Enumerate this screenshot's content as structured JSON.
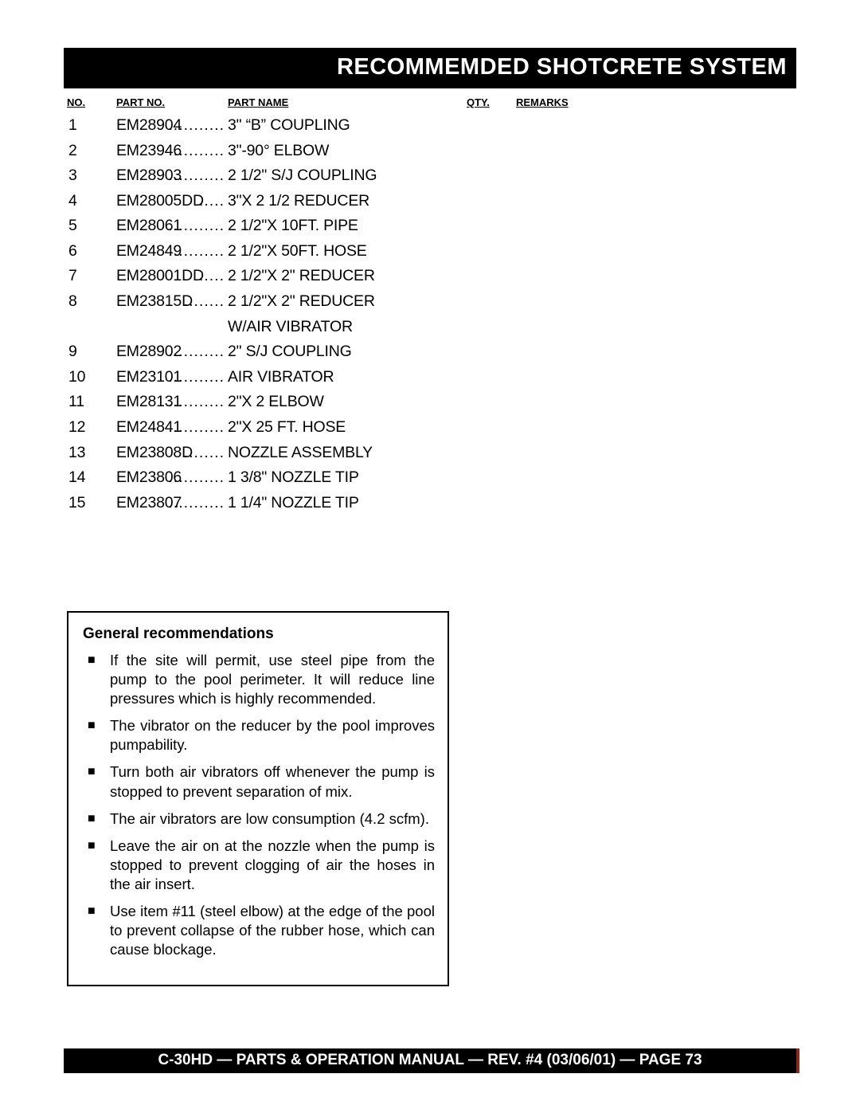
{
  "title": "RECOMMEMDED SHOTCRETE SYSTEM",
  "headers": {
    "no": "NO.",
    "partNo": "PART NO.",
    "partName": "PART NAME",
    "qty": "QTY.",
    "remarks": "REMARKS"
  },
  "parts": [
    {
      "no": "1",
      "pn": "EM28904",
      "dots": "...........",
      "name": "3\" “B” COUPLING"
    },
    {
      "no": "2",
      "pn": "EM23946",
      "dots": "...........",
      "name": "3\"-90° ELBOW"
    },
    {
      "no": "3",
      "pn": "EM28903",
      "dots": "...........",
      "name": "2 1/2\" S/J COUPLING"
    },
    {
      "no": "4",
      "pn": "EM28005DD",
      "dots": ".....",
      "name": "3\"X 2 1/2 REDUCER"
    },
    {
      "no": "5",
      "pn": "EM28061",
      "dots": "...........",
      "name": "2 1/2\"X 10FT. PIPE"
    },
    {
      "no": "6",
      "pn": "EM24849",
      "dots": "...........",
      "name": "2 1/2\"X 50FT. HOSE"
    },
    {
      "no": "7",
      "pn": "EM28001DD",
      "dots": ".....",
      "name": "2 1/2\"X 2\" REDUCER"
    },
    {
      "no": "8",
      "pn": "EM23815D",
      "dots": "........",
      "name": "2 1/2\"X 2\" REDUCER"
    },
    {
      "no": "",
      "pn": "",
      "dots": "",
      "name": "W/AIR VIBRATOR"
    },
    {
      "no": "9",
      "pn": "EM28902",
      "dots": "...........",
      "name": "2\" S/J COUPLING",
      "right": true
    },
    {
      "no": "10",
      "pn": "EM23101",
      "dots": "...........",
      "name": "AIR VIBRATOR"
    },
    {
      "no": "11",
      "pn": "EM28131",
      "dots": "...........",
      "name": "2\"X 2 ELBOW"
    },
    {
      "no": "12",
      "pn": "EM24841",
      "dots": "...........",
      "name": "2\"X 25 FT. HOSE"
    },
    {
      "no": "13",
      "pn": "EM23808D",
      "dots": "........",
      "name": "NOZZLE ASSEMBLY"
    },
    {
      "no": "14",
      "pn": "EM23806",
      "dots": "...........",
      "name": "1 3/8\" NOZZLE TIP"
    },
    {
      "no": "15",
      "pn": "EM23807",
      "dots": "...........",
      "name": "1 1/4\" NOZZLE TIP"
    }
  ],
  "recommendations": {
    "title": "General  recommendations",
    "items": [
      "If the site will permit, use steel pipe from the pump to the pool perimeter. It will reduce line pressures which is highly recommended.",
      "The vibrator on the reducer by the pool improves pumpability.",
      "Turn both air vibrators off whenever the pump is stopped to prevent separation of mix.",
      "The air vibrators are low consumption (4.2 scfm).",
      "Leave the air on at the nozzle when the pump is stopped to prevent clogging of air the hoses in the air insert.",
      "Use item #11 (steel elbow) at the edge of the pool to prevent collapse of the rubber hose, which can cause blockage."
    ]
  },
  "footer": "C-30HD — PARTS & OPERATION MANUAL — REV. #4 (03/06/01) — PAGE 73"
}
